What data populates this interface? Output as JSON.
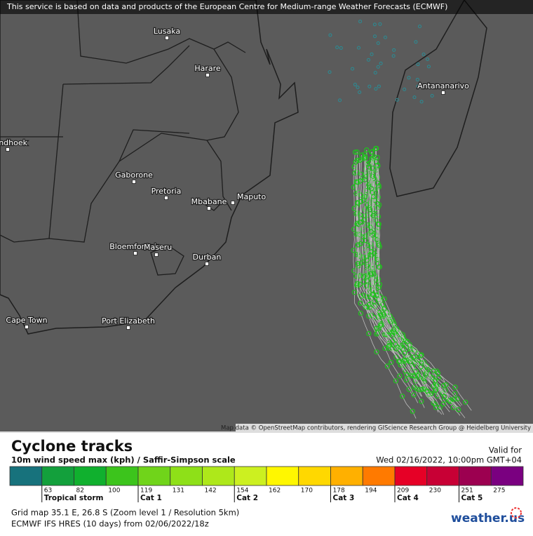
{
  "banner": "This service is based on data and products of the European Centre for Medium-range Weather Forecasts (ECMWF)",
  "cities": [
    "Lusaka",
    "Harare",
    "Antananarivo",
    "ndhoek",
    "Gaborone",
    "Pretoria",
    "Mbabane",
    "Maputo",
    "Bloemfontein",
    "Maseru",
    "Durban",
    "Cape Town",
    "Port Elizabeth"
  ],
  "attribution": "Map data © OpenStreetMap contributors, rendering GIScience Research Group @ Heidelberg University",
  "legend": {
    "title": "Cyclone tracks",
    "subtitle": "10m wind speed max (kph) / Saffir-Simpson scale",
    "valid_label": "Valid for",
    "valid_time": "Wed 02/16/2022, 10:00pm GMT+04",
    "scale_colors": [
      "#17727c",
      "#13a03c",
      "#10b02e",
      "#3cc41c",
      "#70d41a",
      "#8ee018",
      "#aee81a",
      "#ccf020",
      "#fff700",
      "#ffd800",
      "#ffb000",
      "#ff7a00",
      "#e60026",
      "#c80035",
      "#9c0050",
      "#7a0080"
    ],
    "scale_ticks": [
      63,
      82,
      100,
      119,
      131,
      142,
      154,
      162,
      170,
      178,
      194,
      209,
      230,
      251,
      275
    ],
    "categories": [
      "Tropical storm",
      "Cat 1",
      "Cat 2",
      "Cat 3",
      "Cat 4",
      "Cat 5"
    ]
  },
  "footer": {
    "grid_info": "Grid map 35.1 E, 26.8 S (Zoom level 1 / Resolution 5km)",
    "model_info": "ECMWF IFS HRES (10 days) from 02/06/2022/18z",
    "logo": "weather.us"
  }
}
